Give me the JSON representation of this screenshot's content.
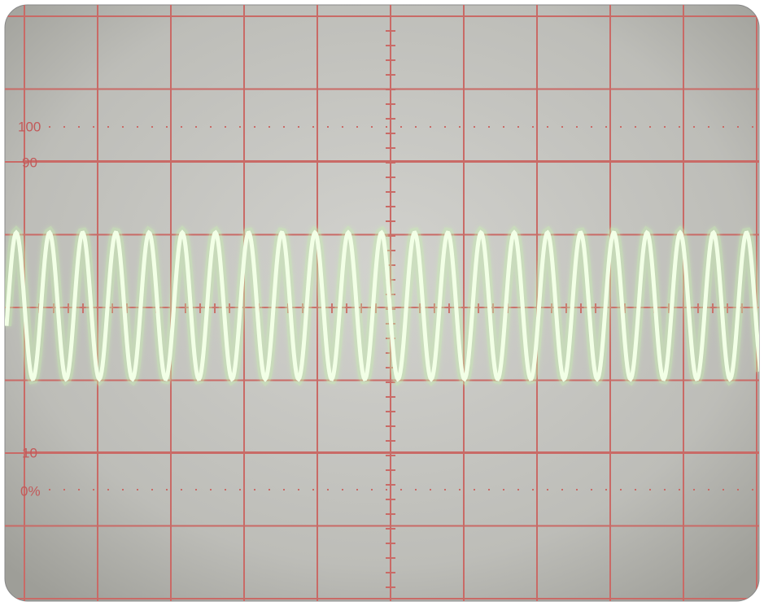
{
  "screen": {
    "labels": [
      "100",
      "90",
      "10",
      "0%"
    ]
  }
}
